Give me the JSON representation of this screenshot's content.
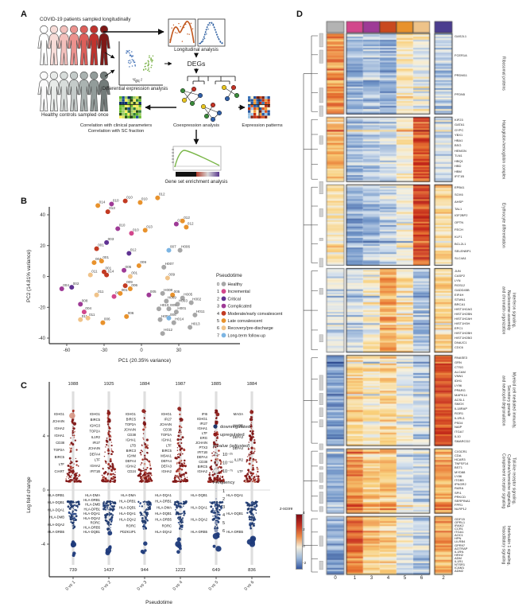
{
  "panel_labels": {
    "a": "A",
    "b": "B",
    "c": "C",
    "d": "D"
  },
  "panelA": {
    "covid_caption": "COVID-19 patients sampled longitudinally",
    "healthy_caption": "Healthy controls sampled once",
    "de_caption": "Differential expression analysis",
    "longitudinal_caption": "Longitudinal analysis",
    "degs_label": "DEGs",
    "corr_caption_1": "Correlation with clinical parameters",
    "corr_caption_2": "Correlation with SC fraction",
    "coexpr_caption": "Coexpression analysis",
    "expr_caption": "Expression patterns",
    "gsea_caption": "Gene set enrichment analysis",
    "covid_colors": [
      "#ffffff",
      "#f7dcd8",
      "#f3c0bc",
      "#ec928e",
      "#dd5f5a",
      "#c0332e",
      "#7e1816"
    ],
    "healthy_colors": [
      "#fafafa",
      "#e8ebe9",
      "#d8dddb",
      "#c4cbc9",
      "#aab3b1",
      "#929c9a",
      "#737c7a"
    ]
  },
  "chart_data": [
    {
      "panel": "B",
      "type": "scatter",
      "xlabel": "PC1 (20.35% variance)",
      "ylabel": "PC2 (14.81% variance)",
      "xticks": [
        -60,
        -30,
        0,
        30
      ],
      "yticks": [
        -40,
        -20,
        0,
        20,
        40
      ],
      "xlim": [
        -75,
        52
      ],
      "ylim": [
        -46,
        56
      ],
      "legend_title": "Pseudotime",
      "legend": [
        {
          "value": 0,
          "label": "Healthy",
          "color": "#a6a6a6"
        },
        {
          "value": 1,
          "label": "Incremental",
          "color": "#d2478c"
        },
        {
          "value": 2,
          "label": "Critical",
          "color": "#5f3292"
        },
        {
          "value": 3,
          "label": "Complicated",
          "color": "#9e3a96"
        },
        {
          "value": 4,
          "label": "Moderate/early convalescent",
          "color": "#c23a22"
        },
        {
          "value": 5,
          "label": "Late convalescent",
          "color": "#e8922c"
        },
        {
          "value": 6,
          "label": "Recovery/pre-discharge",
          "color": "#f0c389"
        },
        {
          "value": 7,
          "label": "Long-term follow-up",
          "color": "#7cb5e3"
        }
      ],
      "points": [
        [
          -35,
          46,
          5,
          "014"
        ],
        [
          -24,
          47,
          3,
          "010"
        ],
        [
          -27,
          42,
          4,
          "013"
        ],
        [
          -13,
          49,
          4,
          "010"
        ],
        [
          -1,
          48,
          5,
          "010"
        ],
        [
          13,
          51,
          5,
          "012"
        ],
        [
          28,
          34,
          3,
          "012"
        ],
        [
          33,
          36,
          5,
          "012"
        ],
        [
          36,
          32,
          5,
          "012"
        ],
        [
          -19,
          31,
          3,
          "010"
        ],
        [
          -8,
          28,
          1,
          "010"
        ],
        [
          3,
          30,
          5,
          "013"
        ],
        [
          -28,
          22,
          2,
          "003"
        ],
        [
          -36,
          18,
          4,
          "001"
        ],
        [
          22,
          17,
          7,
          "007"
        ],
        [
          31,
          17,
          0,
          "H006"
        ],
        [
          -10,
          15,
          2,
          "012"
        ],
        [
          -38,
          9,
          5,
          "004"
        ],
        [
          -32,
          10,
          5,
          "001"
        ],
        [
          -2,
          7,
          5,
          "009"
        ],
        [
          18,
          6,
          0,
          "H007"
        ],
        [
          -41,
          1,
          6,
          "011"
        ],
        [
          -30,
          3,
          4,
          "001"
        ],
        [
          -28,
          1,
          4,
          "014"
        ],
        [
          -14,
          4,
          3,
          "005"
        ],
        [
          -9,
          0,
          6,
          "001"
        ],
        [
          21,
          -1,
          6,
          "009"
        ],
        [
          -64,
          -8,
          3,
          "004"
        ],
        [
          -56,
          -7,
          2,
          "002"
        ],
        [
          -13,
          -6,
          4,
          "009"
        ],
        [
          -9,
          -8,
          5,
          "006"
        ],
        [
          -36,
          -12,
          6,
          "011"
        ],
        [
          -22,
          -13,
          1,
          "002"
        ],
        [
          -17,
          -11,
          5,
          "001"
        ],
        [
          6,
          -12,
          3,
          "005"
        ],
        [
          17,
          -11,
          0,
          "H008"
        ],
        [
          25,
          -12,
          5,
          "005"
        ],
        [
          33,
          -14,
          0,
          "H005"
        ],
        [
          -49,
          -18,
          3,
          "008"
        ],
        [
          20,
          -16,
          0,
          "H009"
        ],
        [
          29,
          -18,
          0,
          "H003"
        ],
        [
          40,
          -17,
          0,
          "H002"
        ],
        [
          -46,
          -23,
          1,
          "004"
        ],
        [
          14,
          -21,
          0,
          "H010"
        ],
        [
          22,
          -21,
          0,
          "005"
        ],
        [
          28,
          -23,
          0,
          "H001"
        ],
        [
          43,
          -25,
          0,
          "H011"
        ],
        [
          -49,
          -28,
          6,
          "011"
        ],
        [
          -43,
          -27,
          6,
          "011"
        ],
        [
          -12,
          -26,
          5,
          "006"
        ],
        [
          15,
          -28,
          0,
          "H004"
        ],
        [
          22,
          -27,
          7,
          "006"
        ],
        [
          26,
          -30,
          0,
          "H014"
        ],
        [
          -31,
          -30,
          5,
          "006"
        ],
        [
          39,
          -33,
          0,
          "H013"
        ],
        [
          17,
          -37,
          0,
          "H012"
        ]
      ]
    },
    {
      "panel": "C",
      "type": "strip",
      "xlabel": "Pseudotime",
      "ylabel": "Log fold change",
      "comparisons": [
        "0 vs 1",
        "0 vs 2",
        "0 vs 3",
        "0 vs 4",
        "0 vs 5",
        "0 vs 6"
      ],
      "up_counts": [
        1088,
        1925,
        1884,
        1987,
        1885,
        1884
      ],
      "down_counts": [
        739,
        1437,
        944,
        1222,
        649,
        836
      ],
      "yticks": [
        4,
        0,
        -4
      ],
      "direction_legend": [
        {
          "label": "downregulated",
          "color": "#203a6e"
        },
        {
          "label": "upregulated",
          "color": "#8f1a1a"
        }
      ],
      "pvalue_title": "p-value (adjusted)",
      "pvalue_levels": [
        "10⁻²⁵",
        "10⁻⁵⁰",
        "10⁻⁷⁵"
      ],
      "frequency_title": "Frequency",
      "frequency_levels": [
        "1",
        "2",
        "3",
        "4",
        "5",
        "6"
      ],
      "up_genes": [
        [
          "IGHG1",
          "JCHAIN",
          "IGHA2",
          "IGHA1",
          "CD38",
          "TOP2A",
          "BIRC5",
          "LTF",
          "CIART"
        ],
        [
          "IGHG1",
          "BIRC5",
          "IGHG3",
          "TOP2A",
          "IL1R2",
          "IFI27",
          "JCHAIN",
          "DEFA4",
          "LTF",
          "IGHA2",
          "IFIT1B"
        ],
        [
          "IGHG1",
          "BIRC5",
          "TOP2A",
          "JCHAIN",
          "CD38",
          "IGHA1",
          "LTB",
          "BIRC3",
          "IGHM",
          "DEFA4",
          "IGHA2",
          "CD24"
        ],
        [
          "IGHG1",
          "IFI27",
          "JCHAIN",
          "CD38",
          "TOP2A",
          "IGHA1",
          "LTF",
          "BIRC5",
          "MS4A1",
          "DEFA4",
          "DEFA3",
          "IGHA2"
        ],
        [
          "IFI6",
          "IGHG1",
          "IFI27",
          "IGHA1",
          "LTF",
          "ERG",
          "JCHAIN",
          "PTX3",
          "IFIT1B",
          "DEFA4",
          "CD38",
          "BIRC5",
          "IGHA2"
        ],
        [
          "MAOA",
          "INHBB",
          "DEFA3",
          "DEFA4",
          "IL1R2",
          "LTF"
        ]
      ],
      "down_genes": [
        [
          "HLA-DRB1",
          "HLA-DQB1",
          "HLA-DQA1",
          "HLA-DMB",
          "HLA-DQA2",
          "HLA-DRB5"
        ],
        [
          "HLA-DMA",
          "HLA-DRB1",
          "HLA-DMB",
          "HLA-DPB1",
          "HLA-DQA1",
          "HLA-DQA2",
          "RORC",
          "HLA-DRB5",
          "HLA-DQB1"
        ],
        [
          "HLA-DMA",
          "HLA-DRB1",
          "HLA-DQB1",
          "HLA-DQA1",
          "HLA-DQA2",
          "RORC",
          "PDZK1IP1"
        ],
        [
          "HLA-DQA1",
          "HLA-DRB1",
          "HLA-DMA",
          "HLA-DQB1",
          "HLA-DRB5",
          "RORC",
          "HLA-DQA2"
        ],
        [
          "HLA-DQB1",
          "HLA-DQA1",
          "HLA-DQA2",
          "HLA-DRB5"
        ],
        [
          "HLA-DQA1",
          "HLA-DQB1",
          "HLA-DRB5"
        ]
      ]
    },
    {
      "panel": "D",
      "type": "heatmap",
      "columns": [
        "0",
        "1",
        "3",
        "4",
        "5",
        "6",
        "2"
      ],
      "column_colors": [
        "#b3b3b3",
        "#d2478c",
        "#9e3a96",
        "#c9491f",
        "#e8922c",
        "#eec389",
        "#4b3d8f"
      ],
      "colorbar": {
        "label": "z-score",
        "ticks": [
          4,
          2,
          0,
          -2
        ],
        "range": [
          -2.5,
          4
        ],
        "gradient": [
          "#800a14",
          "#c23422",
          "#ea8a46",
          "#f5efdc",
          "#9db9da",
          "#32549e"
        ]
      },
      "clusters": [
        {
          "name": "Ribosomal proteins",
          "label_lines": [
            "Ribosomal proteins"
          ],
          "rows": 50,
          "profile": [
            1.8,
            -0.9,
            -0.7,
            -0.9,
            0.5,
            0.1,
            -0.5
          ],
          "genes": [
            "GAS2L1",
            "FCER1A",
            "PRDM11",
            "PFDN5"
          ]
        },
        {
          "name": "Haptoglobin-hemoglobin complex",
          "label_lines": [
            "Haptoglobin-hemoglobin complex"
          ],
          "rows": 40,
          "profile": [
            1.2,
            -0.7,
            -0.5,
            -0.3,
            0.4,
            2.4,
            -0.3
          ],
          "genes": [
            "KIF23",
            "GATA1",
            "GYPC",
            "YBX1",
            "HBA1",
            "BSG",
            "HEMGN",
            "TLN1",
            "HBQ1",
            "HBD",
            "HBM",
            "IFIT1B"
          ]
        },
        {
          "name": "Erythrocyte differentiation",
          "label_lines": [
            "Erythrocyte differentiation"
          ],
          "rows": 50,
          "profile": [
            0.6,
            -0.9,
            -0.7,
            -0.4,
            0.1,
            2.6,
            0.8
          ],
          "genes": [
            "EPB41",
            "SOX6",
            "AHSP",
            "TAL1",
            "IGF2BP2",
            "OPTN",
            "FECH",
            "KLF1",
            "BCL2L1",
            "SELENBP1",
            "SLC4A1"
          ]
        },
        {
          "name": "Interferon signaling, Nucleosome assembly and chromatin organization",
          "label_lines": [
            "Interferon signaling,",
            "Nucleosome assembly",
            "and chromatin organization"
          ],
          "rows": 52,
          "profile": [
            -0.2,
            -0.4,
            0.3,
            1.4,
            0.6,
            -0.7,
            0.8
          ],
          "genes": [
            "JUN",
            "CASP2",
            "LYN",
            "RGS12",
            "GADD45B",
            "EIF4H",
            "STMN1",
            "BRCA1",
            "HIST1H2AG",
            "HIST1H2BN",
            "HIST1H2AH",
            "HIST1H3H",
            "EPC1",
            "HIST1H2BH",
            "HIST1H2BO",
            "DNAJC1",
            "CDC6"
          ]
        },
        {
          "name": "Myeloid cell mediated immunity, Secretory granule and neutrophil degranulation",
          "label_lines": [
            "Myeloid cell mediated immunity,",
            "Secretory granule",
            "and neutrophil degranulation"
          ],
          "rows": 56,
          "profile": [
            -1.2,
            0.9,
            0.5,
            0.8,
            0.1,
            -0.4,
            2.5
          ],
          "genes": [
            "RNASE3",
            "GRN",
            "CTSG",
            "ALCAM",
            "VNN1",
            "IDH1",
            "LY96",
            "PPARG",
            "MAPK14",
            "ACSL1",
            "SMOX",
            "IL18RAP",
            "ROR1",
            "IL1RL1",
            "PSD4",
            "NAIP",
            "ITGA7",
            "IL10",
            "SMARCD2"
          ]
        },
        {
          "name": "Toll-like receptor signaling, Cytokine/chemokine signaling, Complement receptor signaling",
          "label_lines": [
            "Toll-like receptor signaling,",
            "Cytokine/chemokine signaling,",
            "Complement receptor signaling"
          ],
          "rows": 40,
          "profile": [
            -1.0,
            1.7,
            1.0,
            1.1,
            -0.2,
            -0.5,
            1.4
          ],
          "genes": [
            "CX3CR1",
            "CDA",
            "HCAR3",
            "TNFSF14",
            "BST1",
            "MYD88",
            "LY86",
            "ITGB5",
            "IFNGR2",
            "RARA",
            "SPI1",
            "PRKCD",
            "SERPINA1",
            "FPR1",
            "NLRP12"
          ]
        },
        {
          "name": "Interleukin 1 signaling, Vasodilatory signaling",
          "label_lines": [
            "Interleukin 1 signaling,",
            "Vasodilatory signaling"
          ],
          "rows": 36,
          "profile": [
            -1.0,
            2.1,
            1.2,
            0.9,
            -0.1,
            -0.4,
            1.5
          ],
          "genes": [
            "GDF15",
            "OPRL1",
            "IRAK2",
            "CCR1",
            "ITGA1",
            "AOC1",
            "HPN",
            "LILRB4",
            "GPR97",
            "AGTRAP",
            "IL1RN",
            "HRH2",
            "ADM",
            "IL1R1",
            "NTSR1",
            "ICAM1",
            "ADM2"
          ]
        }
      ]
    }
  ]
}
